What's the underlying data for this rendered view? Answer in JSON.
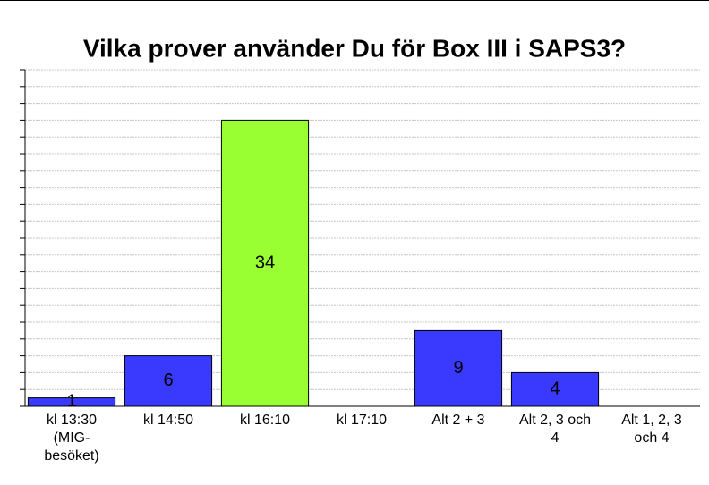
{
  "chart_data": {
    "type": "bar",
    "title": "Vilka prover använder Du för Box III i SAPS3?",
    "categories": [
      "kl 13:30\n(MIG-\nbesöket)",
      "kl 14:50",
      "kl 16:10",
      "kl 17:10",
      "Alt 2 + 3",
      "Alt 2, 3 och\n4",
      "Alt 1, 2, 3\noch 4"
    ],
    "values": [
      1,
      6,
      34,
      0,
      9,
      4,
      0
    ],
    "colors": [
      "#3a3aff",
      "#3a3aff",
      "#99ff33",
      "#3a3aff",
      "#3a3aff",
      "#3a3aff",
      "#3a3aff"
    ],
    "ylim": [
      0,
      40
    ],
    "yticks": [
      0,
      2,
      4,
      6,
      8,
      10,
      12,
      14,
      16,
      18,
      20,
      22,
      24,
      26,
      28,
      30,
      32,
      34,
      36,
      38,
      40
    ],
    "y_tick_labels": false,
    "grid": true
  }
}
